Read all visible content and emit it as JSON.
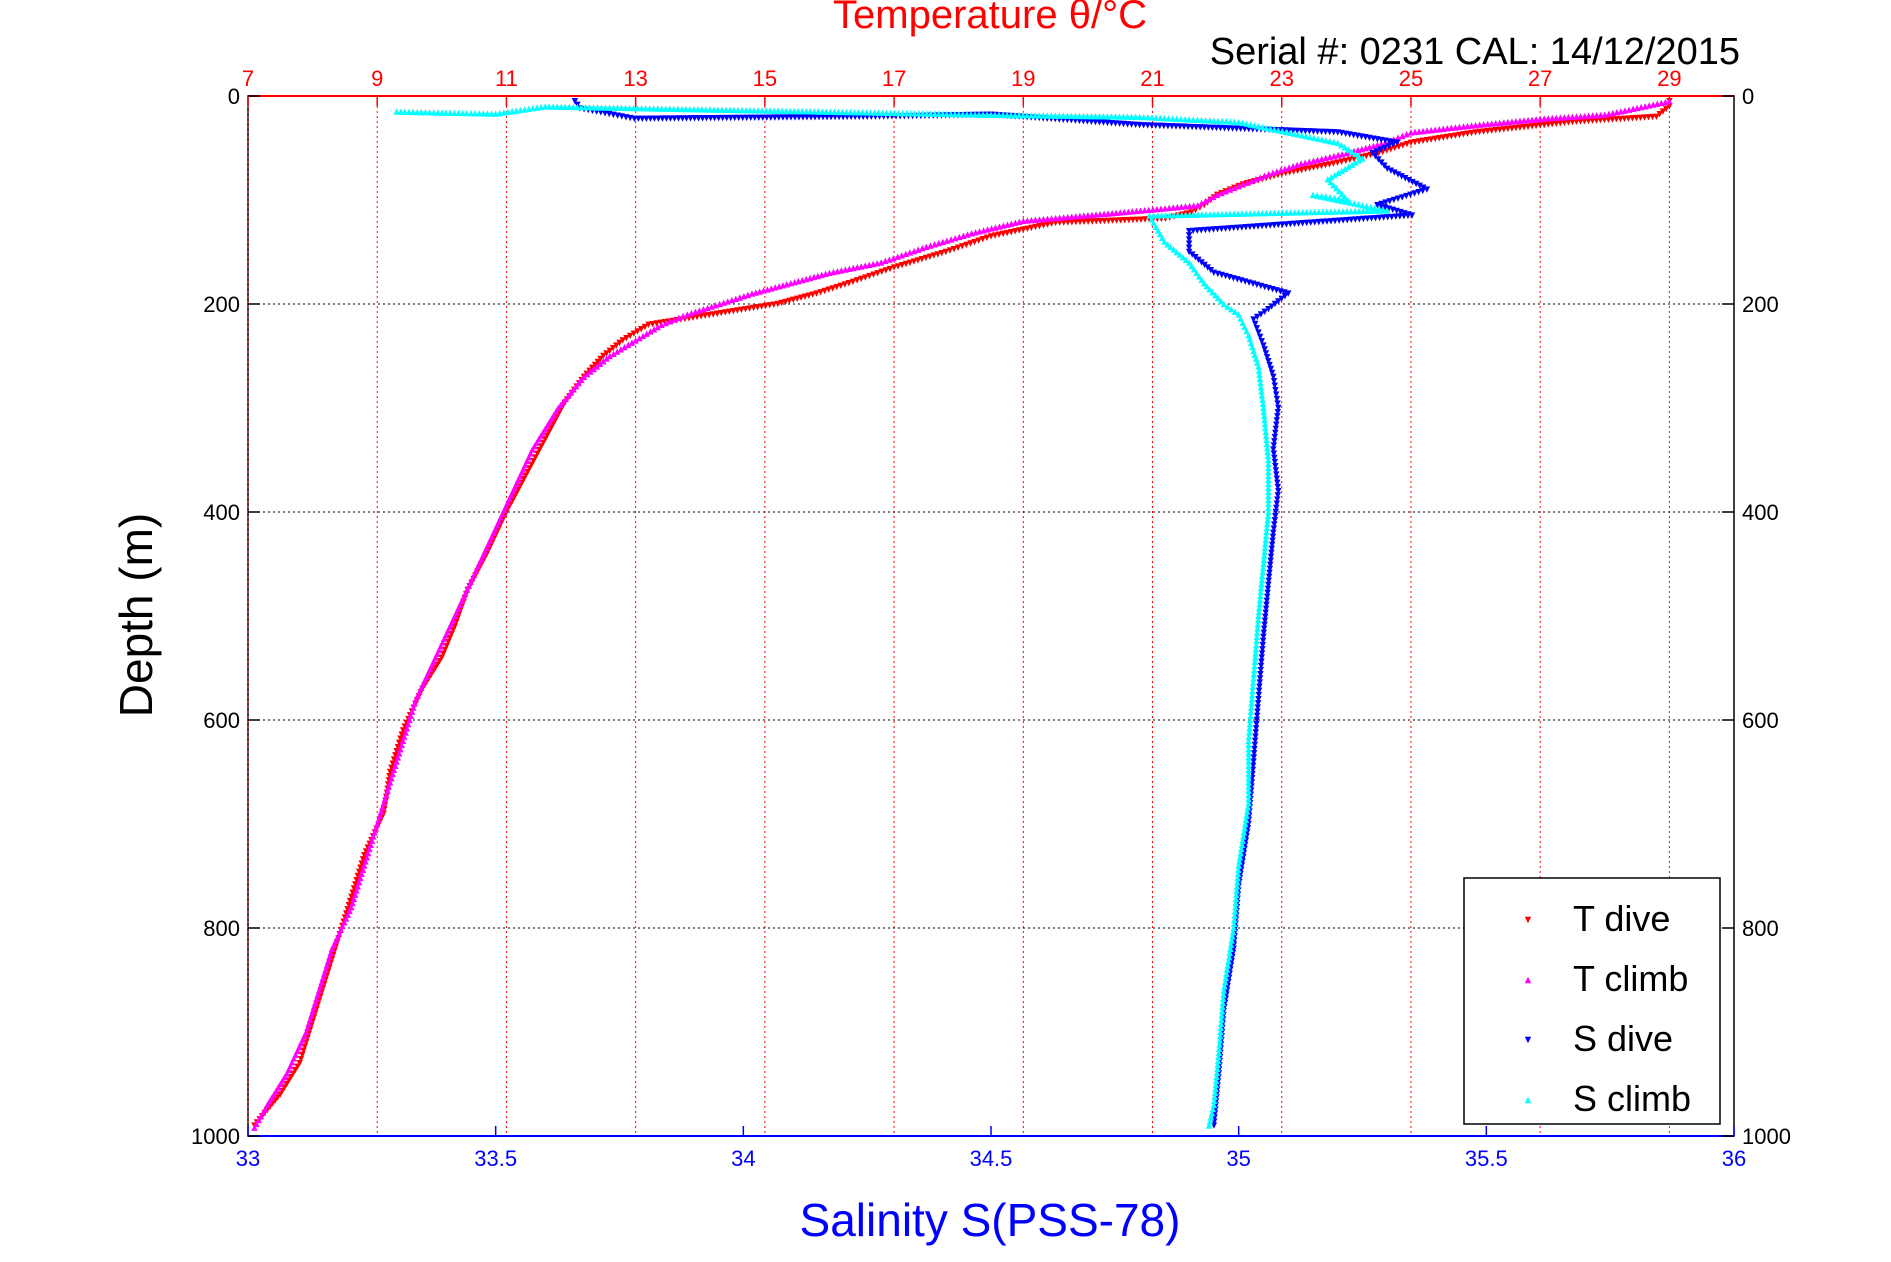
{
  "chart_data": {
    "type": "scatter",
    "title_top": "Temperature θ/°C",
    "serial_label": "Serial #: 0231  CAL: 14/12/2015",
    "xlabel_bottom": "Salinity S(PSS-78)",
    "ylabel": "Depth (m)",
    "top_axis": {
      "range": [
        7,
        30
      ],
      "ticks": [
        "7",
        "9",
        "11",
        "13",
        "15",
        "17",
        "19",
        "21",
        "23",
        "25",
        "27",
        "29"
      ]
    },
    "bottom_axis": {
      "range": [
        33,
        36
      ],
      "ticks": [
        "33",
        "33.5",
        "34",
        "34.5",
        "35",
        "35.5",
        "36"
      ]
    },
    "y_axis": {
      "range": [
        0,
        1000
      ],
      "reversed": true,
      "ticks": [
        "0",
        "200",
        "400",
        "600",
        "800",
        "1000"
      ]
    },
    "grid": true,
    "legend_position": "bottom-right",
    "colors": {
      "t_dive": "#ff0000",
      "t_climb": "#ff00ff",
      "s_dive": "#0000ff",
      "s_climb": "#00ffff",
      "top_axis": "#ff0000",
      "bottom_axis": "#0000ff"
    },
    "series": [
      {
        "name": "T dive",
        "axis": "temperature",
        "marker": "triangle-down",
        "color": "#ff0000",
        "points": [
          [
            29,
            5
          ],
          [
            29,
            10
          ],
          [
            28.8,
            20
          ],
          [
            27.5,
            25
          ],
          [
            26,
            35
          ],
          [
            25,
            45
          ],
          [
            24.5,
            55
          ],
          [
            23.8,
            65
          ],
          [
            23,
            75
          ],
          [
            22.4,
            85
          ],
          [
            22,
            95
          ],
          [
            21.8,
            105
          ],
          [
            21.6,
            112
          ],
          [
            21.2,
            118
          ],
          [
            19.5,
            122
          ],
          [
            18.5,
            135
          ],
          [
            17.8,
            150
          ],
          [
            17,
            165
          ],
          [
            16.3,
            180
          ],
          [
            15.8,
            190
          ],
          [
            15.2,
            200
          ],
          [
            14.2,
            210
          ],
          [
            13.2,
            220
          ],
          [
            12.8,
            235
          ],
          [
            12.5,
            250
          ],
          [
            12.2,
            270
          ],
          [
            11.9,
            295
          ],
          [
            11.6,
            330
          ],
          [
            11.3,
            365
          ],
          [
            11,
            400
          ],
          [
            10.7,
            440
          ],
          [
            10.4,
            475
          ],
          [
            10.2,
            510
          ],
          [
            10,
            540
          ],
          [
            9.7,
            570
          ],
          [
            9.4,
            610
          ],
          [
            9.2,
            650
          ],
          [
            9.1,
            690
          ],
          [
            8.8,
            730
          ],
          [
            8.6,
            770
          ],
          [
            8.4,
            810
          ],
          [
            8.2,
            850
          ],
          [
            8,
            890
          ],
          [
            7.8,
            930
          ],
          [
            7.5,
            960
          ],
          [
            7.1,
            990
          ]
        ]
      },
      {
        "name": "T climb",
        "axis": "temperature",
        "marker": "triangle-up",
        "color": "#ff00ff",
        "points": [
          [
            29,
            5
          ],
          [
            28,
            18
          ],
          [
            27,
            22
          ],
          [
            26,
            28
          ],
          [
            25,
            35
          ],
          [
            24.6,
            45
          ],
          [
            24,
            55
          ],
          [
            23.3,
            65
          ],
          [
            22.8,
            75
          ],
          [
            22.4,
            85
          ],
          [
            22,
            95
          ],
          [
            21.7,
            105
          ],
          [
            20.5,
            112
          ],
          [
            19,
            120
          ],
          [
            18.2,
            132
          ],
          [
            17.5,
            145
          ],
          [
            16.8,
            160
          ],
          [
            16,
            170
          ],
          [
            15.4,
            180
          ],
          [
            14.8,
            190
          ],
          [
            14.3,
            200
          ],
          [
            13.8,
            210
          ],
          [
            13.4,
            220
          ],
          [
            13,
            235
          ],
          [
            12.6,
            250
          ],
          [
            12.2,
            270
          ],
          [
            11.8,
            300
          ],
          [
            11.4,
            340
          ],
          [
            11.1,
            380
          ],
          [
            10.8,
            420
          ],
          [
            10.5,
            460
          ],
          [
            10.2,
            500
          ],
          [
            9.9,
            540
          ],
          [
            9.6,
            580
          ],
          [
            9.4,
            620
          ],
          [
            9.2,
            660
          ],
          [
            9,
            700
          ],
          [
            8.8,
            740
          ],
          [
            8.6,
            780
          ],
          [
            8.3,
            820
          ],
          [
            8.1,
            860
          ],
          [
            7.9,
            900
          ],
          [
            7.6,
            940
          ],
          [
            7.3,
            970
          ],
          [
            7.1,
            992
          ]
        ]
      },
      {
        "name": "S dive",
        "axis": "salinity",
        "marker": "triangle-down",
        "color": "#0000ff",
        "points": [
          [
            33.66,
            5
          ],
          [
            33.67,
            12
          ],
          [
            33.78,
            22
          ],
          [
            34.25,
            20
          ],
          [
            34.5,
            18
          ],
          [
            34.8,
            28
          ],
          [
            35.2,
            35
          ],
          [
            35.32,
            45
          ],
          [
            35.27,
            55
          ],
          [
            35.3,
            70
          ],
          [
            35.38,
            90
          ],
          [
            35.28,
            105
          ],
          [
            35.35,
            115
          ],
          [
            34.9,
            130
          ],
          [
            34.9,
            150
          ],
          [
            34.95,
            170
          ],
          [
            35.1,
            190
          ],
          [
            35.06,
            205
          ],
          [
            35.03,
            215
          ],
          [
            35.05,
            240
          ],
          [
            35.07,
            270
          ],
          [
            35.08,
            300
          ],
          [
            35.07,
            340
          ],
          [
            35.08,
            380
          ],
          [
            35.07,
            420
          ],
          [
            35.06,
            470
          ],
          [
            35.05,
            520
          ],
          [
            35.04,
            580
          ],
          [
            35.03,
            640
          ],
          [
            35.02,
            700
          ],
          [
            35,
            760
          ],
          [
            34.99,
            820
          ],
          [
            34.97,
            880
          ],
          [
            34.96,
            940
          ],
          [
            34.95,
            990
          ]
        ]
      },
      {
        "name": "S climb",
        "axis": "salinity",
        "marker": "triangle-up",
        "color": "#00ffff",
        "points": [
          [
            33.3,
            15
          ],
          [
            33.5,
            17
          ],
          [
            33.6,
            10
          ],
          [
            34.5,
            18
          ],
          [
            34.8,
            20
          ],
          [
            35,
            25
          ],
          [
            35.2,
            45
          ],
          [
            35.25,
            60
          ],
          [
            35.18,
            80
          ],
          [
            35.22,
            100
          ],
          [
            35.15,
            95
          ],
          [
            35.3,
            110
          ],
          [
            34.82,
            115
          ],
          [
            34.85,
            140
          ],
          [
            34.9,
            160
          ],
          [
            34.93,
            180
          ],
          [
            34.97,
            200
          ],
          [
            35,
            210
          ],
          [
            35.02,
            230
          ],
          [
            35.04,
            260
          ],
          [
            35.05,
            300
          ],
          [
            35.06,
            350
          ],
          [
            35.06,
            400
          ],
          [
            35.05,
            450
          ],
          [
            35.04,
            500
          ],
          [
            35.03,
            560
          ],
          [
            35.02,
            620
          ],
          [
            35.02,
            680
          ],
          [
            35,
            740
          ],
          [
            34.99,
            800
          ],
          [
            34.97,
            860
          ],
          [
            34.96,
            920
          ],
          [
            34.95,
            970
          ],
          [
            34.94,
            990
          ]
        ]
      }
    ]
  }
}
